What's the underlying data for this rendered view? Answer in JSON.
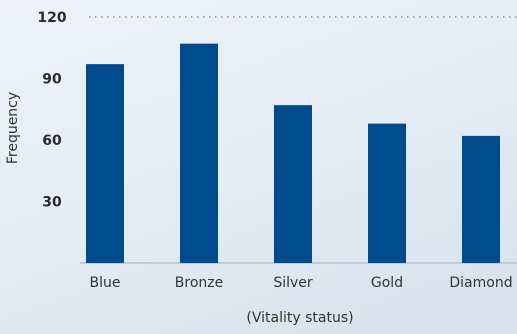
{
  "chart_data": {
    "type": "bar",
    "categories": [
      "Blue",
      "Bronze",
      "Silver",
      "Gold",
      "Diamond"
    ],
    "values": [
      97,
      107,
      77,
      68,
      62
    ],
    "title": "",
    "xlabel": "(Vitality status)",
    "ylabel": "Frequency",
    "ylim": [
      0,
      120
    ],
    "yticks": [
      30,
      60,
      90,
      120
    ],
    "grid": "top dotted line at 120",
    "colors": {
      "bar": "#004b8d",
      "grid": "#8a8a8a",
      "baseline": "#b8c3cf"
    }
  }
}
